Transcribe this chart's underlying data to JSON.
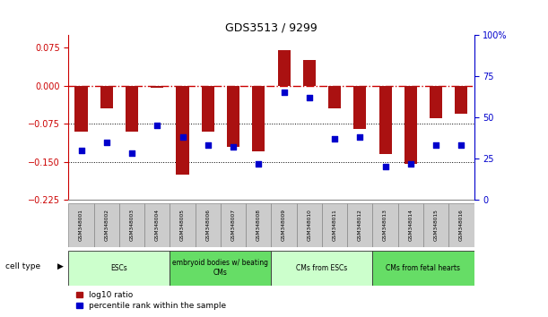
{
  "title": "GDS3513 / 9299",
  "samples": [
    "GSM348001",
    "GSM348002",
    "GSM348003",
    "GSM348004",
    "GSM348005",
    "GSM348006",
    "GSM348007",
    "GSM348008",
    "GSM348009",
    "GSM348010",
    "GSM348011",
    "GSM348012",
    "GSM348013",
    "GSM348014",
    "GSM348015",
    "GSM348016"
  ],
  "log10_ratio": [
    -0.09,
    -0.045,
    -0.09,
    -0.005,
    -0.175,
    -0.09,
    -0.12,
    -0.13,
    0.07,
    0.05,
    -0.045,
    -0.085,
    -0.135,
    -0.155,
    -0.065,
    -0.055
  ],
  "percentile_rank": [
    30,
    35,
    28,
    45,
    38,
    33,
    32,
    22,
    65,
    62,
    37,
    38,
    20,
    22,
    33,
    33
  ],
  "bar_color": "#AA1111",
  "dot_color": "#0000CC",
  "ylim_left": [
    -0.225,
    0.1
  ],
  "ylim_right": [
    0,
    100
  ],
  "yticks_left": [
    0.075,
    0,
    -0.075,
    -0.15,
    -0.225
  ],
  "yticks_right": [
    100,
    75,
    50,
    25,
    0
  ],
  "hline_zero_color": "#CC0000",
  "hline_dotted_color": "#000000",
  "hline_at": [
    -0.075,
    -0.15
  ],
  "cell_types": [
    {
      "label": "ESCs",
      "start": 0,
      "end": 4,
      "color": "#CCFFCC"
    },
    {
      "label": "embryoid bodies w/ beating\nCMs",
      "start": 4,
      "end": 8,
      "color": "#66DD66"
    },
    {
      "label": "CMs from ESCs",
      "start": 8,
      "end": 12,
      "color": "#CCFFCC"
    },
    {
      "label": "CMs from fetal hearts",
      "start": 12,
      "end": 16,
      "color": "#66DD66"
    }
  ],
  "legend_red_label": "log10 ratio",
  "legend_blue_label": "percentile rank within the sample",
  "right_axis_color": "#0000CC",
  "left_axis_color": "#CC0000",
  "background_color": "#FFFFFF",
  "sample_box_color": "#CCCCCC",
  "sample_box_edge": "#888888"
}
